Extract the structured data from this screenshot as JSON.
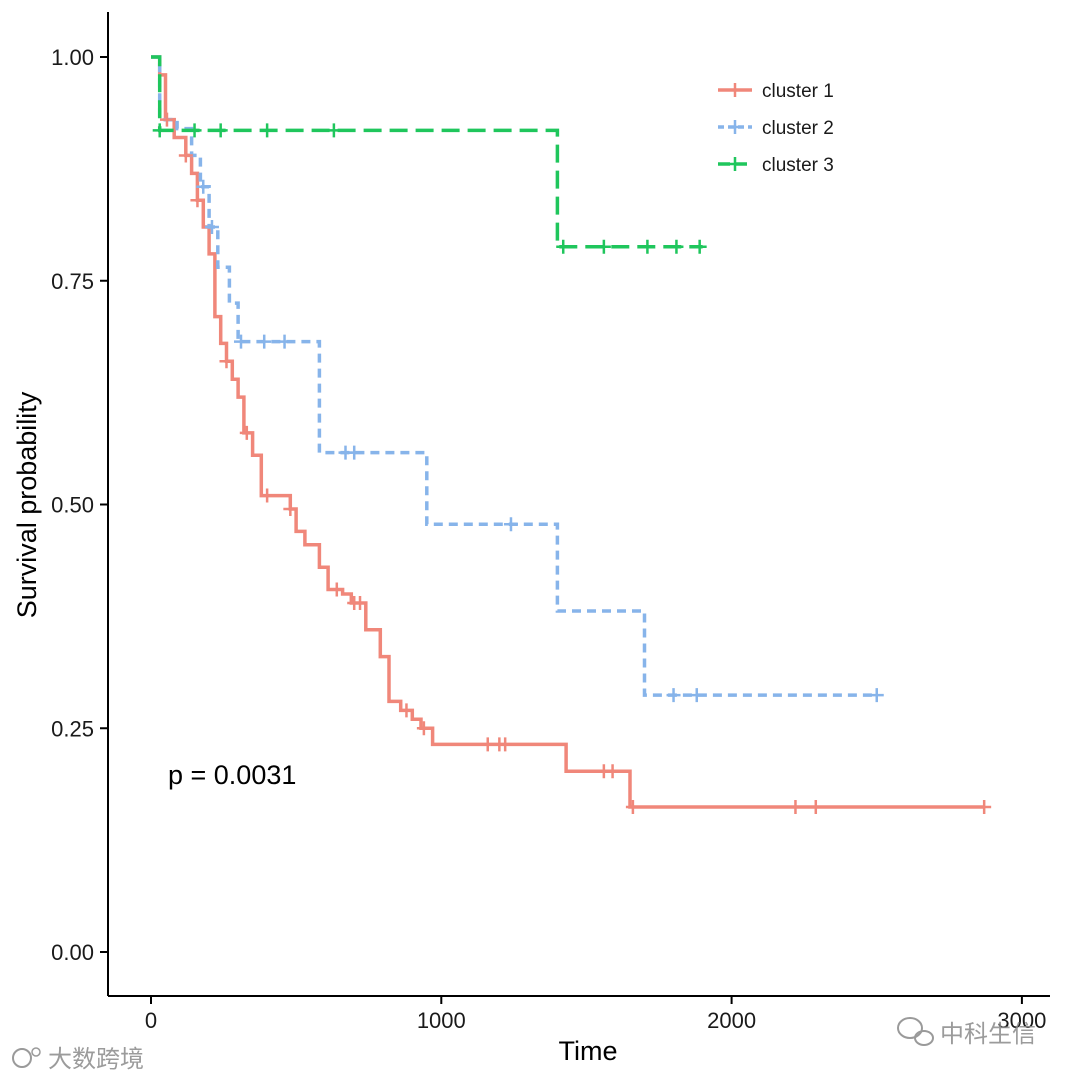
{
  "chart_data": {
    "type": "line",
    "step": true,
    "xlabel": "Time",
    "ylabel": "Survival probability",
    "xlim": [
      -150,
      3050
    ],
    "ylim": [
      -0.05,
      1.05
    ],
    "x_ticks": [
      0,
      1000,
      2000,
      3000
    ],
    "x_tick_labels": [
      "0",
      "1000",
      "2000",
      "3000"
    ],
    "y_ticks": [
      0,
      0.25,
      0.5,
      0.75,
      1
    ],
    "y_tick_labels": [
      "0.00",
      "0.25",
      "0.50",
      "0.75",
      "1.00"
    ],
    "grid": false,
    "legend_position": "top-right",
    "annotation": {
      "text": "p = 0.0031",
      "x": 60,
      "y": 0.195
    },
    "series": [
      {
        "name": "cluster 1",
        "color": "#f0877a",
        "line_style": "solid",
        "steps": [
          [
            0,
            1.0
          ],
          [
            30,
            0.98
          ],
          [
            50,
            0.93
          ],
          [
            80,
            0.91
          ],
          [
            120,
            0.89
          ],
          [
            140,
            0.87
          ],
          [
            160,
            0.84
          ],
          [
            180,
            0.81
          ],
          [
            200,
            0.78
          ],
          [
            220,
            0.71
          ],
          [
            240,
            0.68
          ],
          [
            260,
            0.66
          ],
          [
            280,
            0.64
          ],
          [
            300,
            0.62
          ],
          [
            320,
            0.58
          ],
          [
            350,
            0.555
          ],
          [
            380,
            0.51
          ],
          [
            480,
            0.495
          ],
          [
            500,
            0.47
          ],
          [
            530,
            0.455
          ],
          [
            580,
            0.43
          ],
          [
            610,
            0.405
          ],
          [
            660,
            0.4
          ],
          [
            690,
            0.39
          ],
          [
            740,
            0.36
          ],
          [
            790,
            0.33
          ],
          [
            820,
            0.28
          ],
          [
            860,
            0.27
          ],
          [
            900,
            0.26
          ],
          [
            930,
            0.25
          ],
          [
            970,
            0.232
          ],
          [
            1430,
            0.202
          ],
          [
            1650,
            0.162
          ],
          [
            2870,
            0.162
          ]
        ],
        "censor_times": [
          55,
          120,
          160,
          260,
          330,
          400,
          480,
          640,
          700,
          720,
          880,
          940,
          1160,
          1200,
          1220,
          1560,
          1590,
          1660,
          2220,
          2290,
          2870
        ]
      },
      {
        "name": "cluster 2",
        "color": "#87b4ea",
        "line_style": "dotted",
        "steps": [
          [
            0,
            1.0
          ],
          [
            30,
            0.93
          ],
          [
            90,
            0.92
          ],
          [
            140,
            0.89
          ],
          [
            170,
            0.855
          ],
          [
            200,
            0.81
          ],
          [
            230,
            0.765
          ],
          [
            270,
            0.725
          ],
          [
            300,
            0.682
          ],
          [
            580,
            0.558
          ],
          [
            950,
            0.478
          ],
          [
            1400,
            0.381
          ],
          [
            1700,
            0.287
          ],
          [
            2500,
            0.287
          ]
        ],
        "censor_times": [
          180,
          210,
          310,
          390,
          460,
          670,
          700,
          1240,
          1800,
          1880,
          2500
        ]
      },
      {
        "name": "cluster 3",
        "color": "#1fc65c",
        "line_style": "dashed",
        "steps": [
          [
            0,
            1.0
          ],
          [
            30,
            0.918
          ],
          [
            1400,
            0.788
          ],
          [
            1900,
            0.788
          ]
        ],
        "censor_times": [
          30,
          150,
          240,
          400,
          630,
          1420,
          1560,
          1710,
          1810,
          1890
        ]
      }
    ]
  },
  "watermarks": {
    "left": "大数跨境",
    "right": "中科生信"
  }
}
